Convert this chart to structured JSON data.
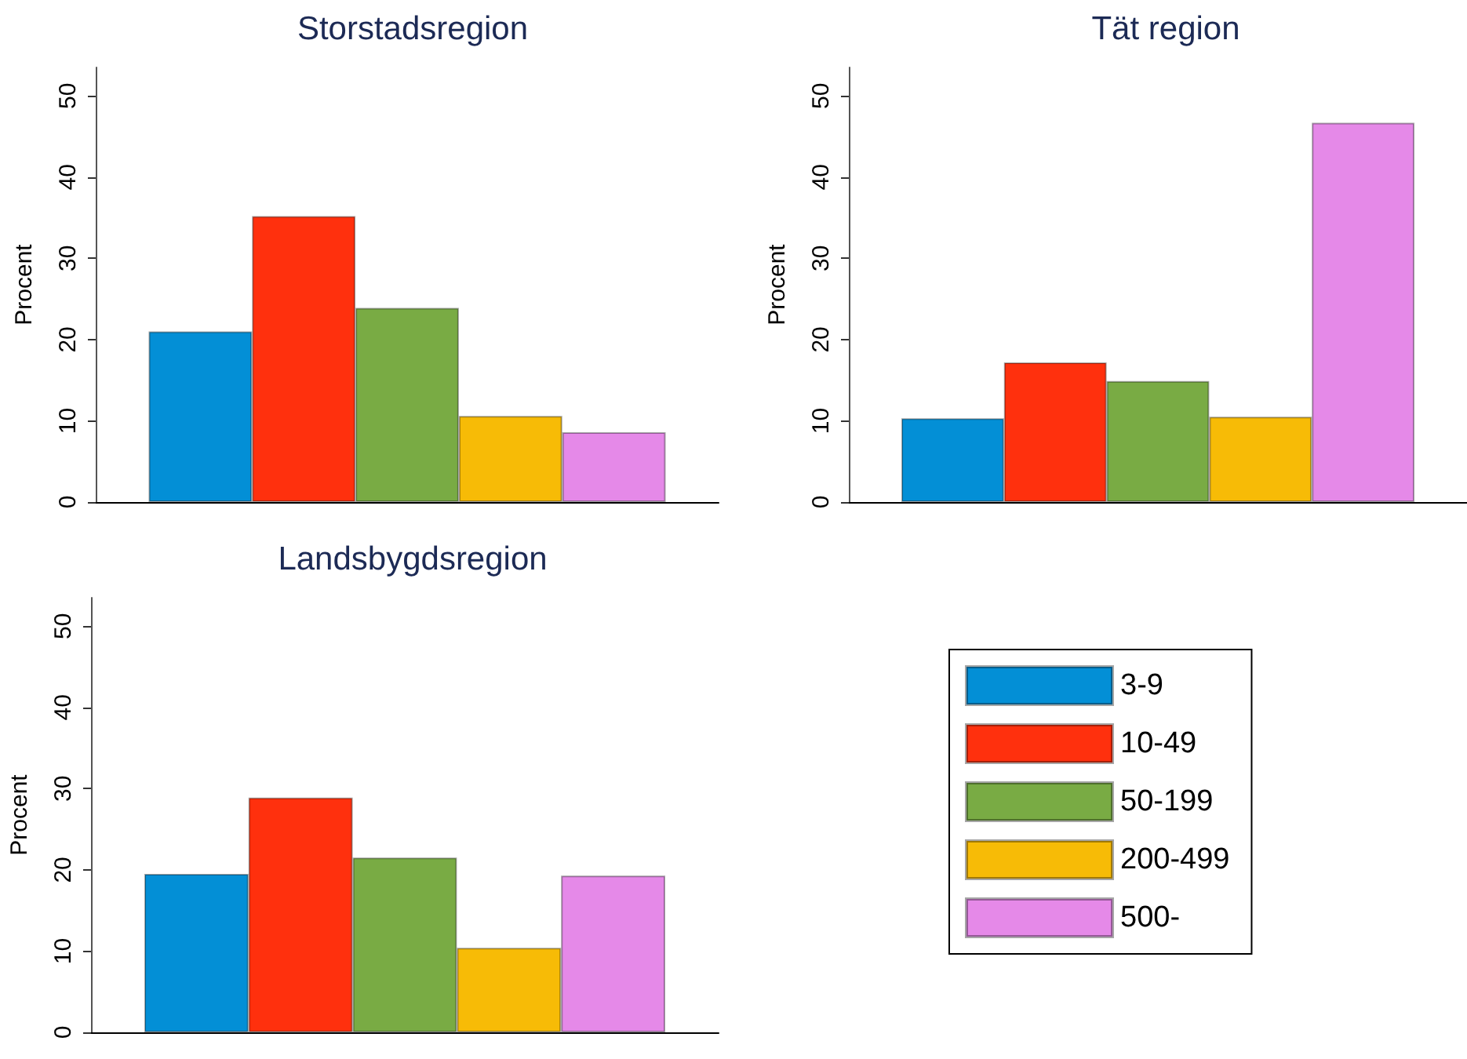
{
  "chart_data": [
    {
      "type": "bar",
      "title": "Storstadsregion",
      "ylabel": "Procent",
      "categories": [
        null
      ],
      "ylim": [
        0,
        53.5
      ],
      "yticks": [
        0,
        10,
        20,
        30,
        40,
        50
      ],
      "grid": false,
      "legend": false,
      "series": [
        {
          "color": "#038fd6",
          "values": [
            21.0
          ]
        },
        {
          "color": "#ff300d",
          "values": [
            35.2
          ]
        },
        {
          "color": "#79ab44",
          "values": [
            23.9
          ]
        },
        {
          "color": "#f7bb06",
          "values": [
            10.6
          ]
        },
        {
          "color": "#e589e8",
          "values": [
            8.6
          ]
        }
      ]
    },
    {
      "type": "bar",
      "title": "Tät region",
      "ylabel": "Procent",
      "categories": [
        null
      ],
      "ylim": [
        0,
        53.5
      ],
      "yticks": [
        0,
        10,
        20,
        30,
        40,
        50
      ],
      "grid": false,
      "legend": false,
      "series": [
        {
          "color": "#038fd6",
          "values": [
            10.3
          ]
        },
        {
          "color": "#ff300d",
          "values": [
            17.2
          ]
        },
        {
          "color": "#79ab44",
          "values": [
            14.9
          ]
        },
        {
          "color": "#f7bb06",
          "values": [
            10.5
          ]
        },
        {
          "color": "#e589e8",
          "values": [
            46.7
          ]
        }
      ]
    },
    {
      "type": "bar",
      "title": "Landsbygdsregion",
      "ylabel": "Procent",
      "categories": [
        null
      ],
      "ylim": [
        0,
        53.5
      ],
      "yticks": [
        0,
        10,
        20,
        30,
        40,
        50
      ],
      "grid": false,
      "legend": "right",
      "series": [
        {
          "name": "3-9",
          "color": "#038fd6",
          "values": [
            19.5
          ]
        },
        {
          "name": "10-49",
          "color": "#ff300d",
          "values": [
            28.9
          ]
        },
        {
          "name": "50-199",
          "color": "#79ab44",
          "values": [
            21.5
          ]
        },
        {
          "name": "200-499",
          "color": "#f7bb06",
          "values": [
            10.4
          ]
        },
        {
          "name": "500-",
          "color": "#e589e8",
          "values": [
            19.3
          ]
        }
      ]
    }
  ]
}
